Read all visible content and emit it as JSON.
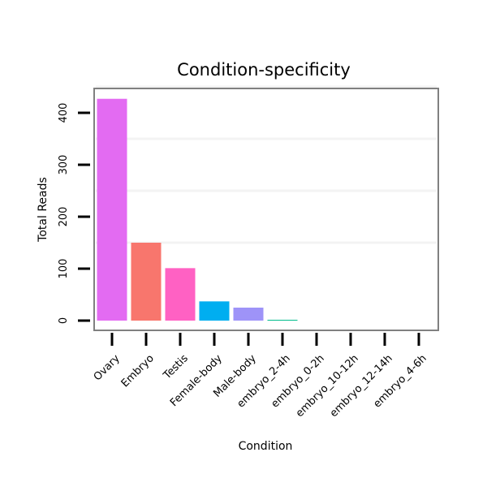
{
  "chart_data": {
    "type": "bar",
    "title": "Condition-specificity",
    "xlabel": "Condition",
    "ylabel": "Total Reads",
    "categories": [
      "Ovary",
      "Embryo",
      "Testis",
      "Female-body",
      "Male-body",
      "embryo_2-4h",
      "embryo_0-2h",
      "embryo_10-12h",
      "embryo_12-14h",
      "embryo_4-6h"
    ],
    "values": [
      427,
      150,
      101,
      37,
      25,
      1,
      0,
      0,
      0,
      0
    ],
    "colors": [
      "#E36BF2",
      "#F8766D",
      "#FF61C3",
      "#00AEF0",
      "#9E93F8",
      "#00BC8C",
      "#00BA38",
      "#00B0F6",
      "#C77CFF",
      "#7CAE00"
    ],
    "ylim": [
      0,
      440
    ],
    "yticks": [
      0,
      100,
      200,
      300,
      400
    ],
    "grid": true,
    "legend": "none"
  }
}
